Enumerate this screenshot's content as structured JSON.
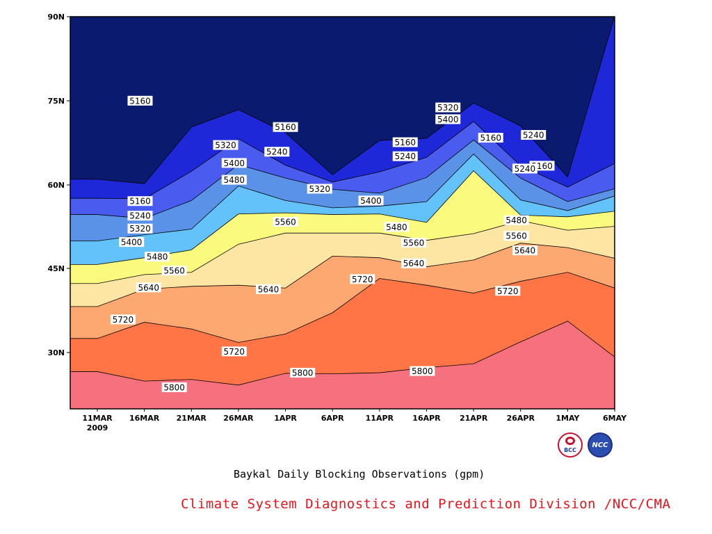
{
  "chart_data": {
    "type": "contour",
    "title": "Baykal Daily Blocking Observations (gpm)",
    "xlabel": "",
    "ylabel": "",
    "x_tick_labels": [
      "11MAR",
      "16MAR",
      "21MAR",
      "26MAR",
      "1APR",
      "6APR",
      "11APR",
      "16APR",
      "21APR",
      "26APR",
      "1MAY",
      "6MAY"
    ],
    "x_year_label": "2009",
    "y_tick_labels": [
      "30N",
      "45N",
      "60N",
      "75N",
      "90N"
    ],
    "x_dates": [
      "2009-03-11",
      "2009-03-16",
      "2009-03-21",
      "2009-03-26",
      "2009-04-01",
      "2009-04-06",
      "2009-04-11",
      "2009-04-16",
      "2009-04-21",
      "2009-04-26",
      "2009-05-01",
      "2009-05-06"
    ],
    "ylim": [
      20,
      90
    ],
    "units": "gpm",
    "contour_levels": [
      5160,
      5240,
      5320,
      5400,
      5480,
      5560,
      5640,
      5720,
      5800
    ],
    "fill_colors": [
      "#0a1a6e",
      "#1e28d8",
      "#4a5cf0",
      "#5a92e8",
      "#64c2fa",
      "#fafa7e",
      "#fde6a4",
      "#fca870",
      "#ff7545",
      "#f6717d"
    ],
    "grid": false,
    "latitude_of_contours_by_date": {
      "dates": [
        "2009-03-11",
        "2009-03-16",
        "2009-03-21",
        "2009-03-26",
        "2009-04-01",
        "2009-04-06",
        "2009-04-11",
        "2009-04-16",
        "2009-04-21",
        "2009-04-26",
        "2009-05-01",
        "2009-05-06"
      ],
      "5800": [
        26.6,
        24.9,
        25.2,
        24.2,
        26.3,
        26.2,
        26.4,
        27.3,
        28.0,
        31.9,
        35.6,
        29.2
      ],
      "5720": [
        32.5,
        35.4,
        34.2,
        31.8,
        33.3,
        37.1,
        43.2,
        42.0,
        40.6,
        42.7,
        44.3,
        41.5
      ],
      "5640": [
        38.2,
        41.3,
        41.8,
        42.0,
        41.5,
        47.2,
        46.9,
        45.3,
        46.5,
        49.5,
        48.7,
        46.8
      ],
      "5560": [
        42.3,
        43.9,
        44.3,
        49.3,
        51.3,
        51.3,
        51.3,
        50.0,
        51.2,
        53.5,
        51.8,
        52.5
      ],
      "5480": [
        45.7,
        46.9,
        48.3,
        54.7,
        54.9,
        54.6,
        54.7,
        53.2,
        62.4,
        54.5,
        54.2,
        55.2
      ],
      "5400": [
        49.9,
        51.0,
        52.0,
        59.7,
        57.1,
        55.8,
        56.1,
        56.9,
        65.4,
        57.2,
        55.3,
        57.9
      ],
      "5320": [
        54.6,
        53.9,
        57.1,
        63.5,
        61.1,
        59.1,
        58.4,
        61.2,
        67.9,
        61.1,
        56.9,
        59.2
      ],
      "5240": [
        57.5,
        57.4,
        62.3,
        68.1,
        63.4,
        60.4,
        62.2,
        64.8,
        71.2,
        63.3,
        59.5,
        63.7
      ],
      "5160": [
        60.9,
        60.1,
        70.2,
        73.3,
        69.2,
        61.7,
        67.8,
        68.2,
        74.5,
        70.4,
        61.3,
        90.0
      ]
    },
    "contour_labels": [
      {
        "level": "5160",
        "date": "2009-03-16",
        "lat": 74.9
      },
      {
        "level": "5160",
        "date": "2009-04-02",
        "lat": 70.2
      },
      {
        "level": "5160",
        "date": "2009-04-16",
        "lat": 67.5
      },
      {
        "level": "5160",
        "date": "2009-04-26",
        "lat": 68.3
      },
      {
        "level": "5160",
        "date": "2009-05-02",
        "lat": 63.3
      },
      {
        "level": "5160",
        "date": "2009-03-16",
        "lat": 57.0
      },
      {
        "level": "5240",
        "date": "2009-05-01",
        "lat": 68.8
      },
      {
        "level": "5240",
        "date": "2009-04-01",
        "lat": 65.8
      },
      {
        "level": "5240",
        "date": "2009-04-16",
        "lat": 65.0
      },
      {
        "level": "5240",
        "date": "2009-04-30",
        "lat": 62.8
      },
      {
        "level": "5240",
        "date": "2009-03-16",
        "lat": 54.4
      },
      {
        "level": "5320",
        "date": "2009-04-21",
        "lat": 73.7
      },
      {
        "level": "5320",
        "date": "2009-03-26",
        "lat": 67.0
      },
      {
        "level": "5320",
        "date": "2009-04-06",
        "lat": 59.2
      },
      {
        "level": "5320",
        "date": "2009-03-16",
        "lat": 52.1
      },
      {
        "level": "5400",
        "date": "2009-04-21",
        "lat": 71.6
      },
      {
        "level": "5400",
        "date": "2009-03-27",
        "lat": 63.8
      },
      {
        "level": "5400",
        "date": "2009-04-12",
        "lat": 57.1
      },
      {
        "level": "5400",
        "date": "2009-03-15",
        "lat": 49.7
      },
      {
        "level": "5480",
        "date": "2009-03-27",
        "lat": 60.8
      },
      {
        "level": "5480",
        "date": "2009-04-15",
        "lat": 52.4
      },
      {
        "level": "5480",
        "date": "2009-04-29",
        "lat": 53.6
      },
      {
        "level": "5480",
        "date": "2009-03-18",
        "lat": 47.1
      },
      {
        "level": "5560",
        "date": "2009-04-02",
        "lat": 53.3
      },
      {
        "level": "5560",
        "date": "2009-04-17",
        "lat": 49.6
      },
      {
        "level": "5560",
        "date": "2009-04-29",
        "lat": 50.8
      },
      {
        "level": "5560",
        "date": "2009-03-20",
        "lat": 44.6
      },
      {
        "level": "5640",
        "date": "2009-03-17",
        "lat": 41.6
      },
      {
        "level": "5640",
        "date": "2009-03-31",
        "lat": 41.3
      },
      {
        "level": "5640",
        "date": "2009-04-17",
        "lat": 45.9
      },
      {
        "level": "5640",
        "date": "2009-04-30",
        "lat": 48.2
      },
      {
        "level": "5720",
        "date": "2009-03-14",
        "lat": 35.9
      },
      {
        "level": "5720",
        "date": "2009-03-27",
        "lat": 30.2
      },
      {
        "level": "5720",
        "date": "2009-04-11",
        "lat": 43.1
      },
      {
        "level": "5720",
        "date": "2009-04-28",
        "lat": 41.0
      },
      {
        "level": "5800",
        "date": "2009-03-20",
        "lat": 23.8
      },
      {
        "level": "5800",
        "date": "2009-04-04",
        "lat": 26.4
      },
      {
        "level": "5800",
        "date": "2009-04-18",
        "lat": 26.7
      }
    ]
  },
  "captions": {
    "title": "Baykal Daily Blocking Observations (gpm)",
    "credit": "Climate System Diagnostics and Prediction Division /NCC/CMA"
  },
  "logos": {
    "bcc": "BCC",
    "ncc": "NCC"
  }
}
